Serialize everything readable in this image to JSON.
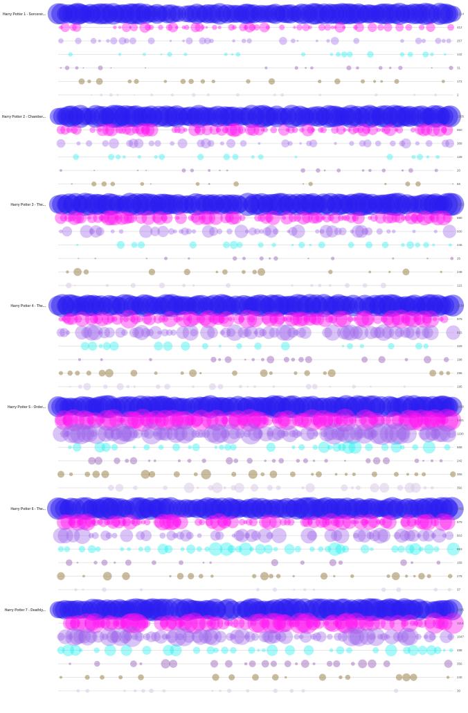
{
  "chart_data": {
    "type": "scatter",
    "title": "",
    "xlabel": "",
    "ylabel": "",
    "grid": false,
    "legend": "none",
    "x_range": [
      0,
      100
    ],
    "books": [
      {
        "title": "Harry Potter 1 - Sorcerer...",
        "totals": [
          "1214",
          "412",
          "257",
          "142",
          "31",
          "172",
          "2"
        ]
      },
      {
        "title": "Harry Potter 2 - Chamber...",
        "totals": [
          "1505",
          "650",
          "389",
          "128",
          "20",
          "56",
          ""
        ]
      },
      {
        "title": "Harry Potter 3 - The...",
        "totals": [
          "1922",
          "690",
          "600",
          "246",
          "26",
          "248",
          "122"
        ]
      },
      {
        "title": "Harry Potter 4 - The...",
        "totals": [
          "2534",
          "979",
          "815",
          "329",
          "198",
          "296",
          "195"
        ]
      },
      {
        "title": "Harry Potter 5 - Order...",
        "totals": [
          "2930",
          "1221",
          "1190",
          "568",
          "242",
          "365",
          "392"
        ]
      },
      {
        "title": "Harry Potter 6 - The...",
        "totals": [
          "2421",
          "879",
          "803",
          "653",
          "169",
          "278",
          "37"
        ]
      },
      {
        "title": "Harry Potter 7 - Deathly...",
        "totals": [
          "2695",
          "1114",
          "1047",
          "488",
          "356",
          "240",
          "30"
        ]
      }
    ],
    "series": [
      {
        "color": "#2a1bf0"
      },
      {
        "color": "#ff10f0"
      },
      {
        "color": "#9a62ea"
      },
      {
        "color": "#12f0f0"
      },
      {
        "color": "#8e4fb0"
      },
      {
        "color": "#8a6a28"
      },
      {
        "color": "#d7c8e6"
      }
    ]
  }
}
